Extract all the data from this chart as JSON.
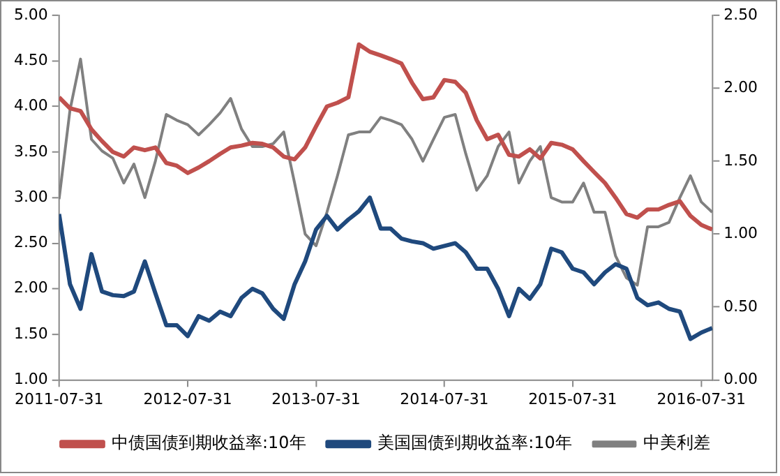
{
  "chart_data": {
    "type": "line",
    "x": [
      "2011-07-31",
      "2011-08-31",
      "2011-09-30",
      "2011-10-31",
      "2011-11-30",
      "2011-12-31",
      "2012-01-31",
      "2012-02-29",
      "2012-03-31",
      "2012-04-30",
      "2012-05-31",
      "2012-06-30",
      "2012-07-31",
      "2012-08-31",
      "2012-09-30",
      "2012-10-31",
      "2012-11-30",
      "2012-12-31",
      "2013-01-31",
      "2013-02-28",
      "2013-03-31",
      "2013-04-30",
      "2013-05-31",
      "2013-06-30",
      "2013-07-31",
      "2013-08-31",
      "2013-09-30",
      "2013-10-31",
      "2013-11-30",
      "2013-12-31",
      "2014-01-31",
      "2014-02-28",
      "2014-03-31",
      "2014-04-30",
      "2014-05-31",
      "2014-06-30",
      "2014-07-31",
      "2014-08-31",
      "2014-09-30",
      "2014-10-31",
      "2014-11-30",
      "2014-12-31",
      "2015-01-31",
      "2015-02-28",
      "2015-03-31",
      "2015-04-30",
      "2015-05-31",
      "2015-06-30",
      "2015-07-31",
      "2015-08-31",
      "2015-09-30",
      "2015-10-31",
      "2015-11-30",
      "2015-12-31",
      "2016-01-31",
      "2016-02-29",
      "2016-03-31",
      "2016-04-30",
      "2016-05-31",
      "2016-06-30",
      "2016-07-31",
      "2016-08-31"
    ],
    "series": [
      {
        "name": "中债国债到期收益率:10年",
        "color": "#c0504d",
        "values": [
          4.1,
          3.98,
          3.95,
          3.75,
          3.62,
          3.5,
          3.45,
          3.55,
          3.52,
          3.55,
          3.38,
          3.35,
          3.27,
          3.33,
          3.4,
          3.48,
          3.55,
          3.57,
          3.6,
          3.59,
          3.55,
          3.45,
          3.42,
          3.55,
          3.78,
          4.0,
          4.04,
          4.1,
          4.68,
          4.6,
          4.56,
          4.52,
          4.47,
          4.26,
          4.08,
          4.1,
          4.29,
          4.27,
          4.15,
          3.85,
          3.64,
          3.69,
          3.47,
          3.45,
          3.53,
          3.43,
          3.6,
          3.58,
          3.53,
          3.4,
          3.28,
          3.16,
          3.0,
          2.82,
          2.78,
          2.87,
          2.87,
          2.92,
          2.96,
          2.8,
          2.7,
          2.65
        ]
      },
      {
        "name": "美国国债到期收益率:10年",
        "color": "#1f497d",
        "values": [
          2.82,
          2.05,
          1.78,
          2.38,
          1.97,
          1.93,
          1.92,
          1.97,
          2.3,
          1.95,
          1.6,
          1.6,
          1.48,
          1.7,
          1.65,
          1.75,
          1.7,
          1.9,
          2.0,
          1.95,
          1.78,
          1.67,
          2.05,
          2.3,
          2.65,
          2.8,
          2.65,
          2.76,
          2.85,
          3.0,
          2.66,
          2.66,
          2.55,
          2.52,
          2.5,
          2.44,
          2.47,
          2.5,
          2.4,
          2.22,
          2.22,
          2.0,
          1.7,
          2.0,
          1.89,
          2.05,
          2.44,
          2.4,
          2.22,
          2.18,
          2.05,
          2.18,
          2.27,
          2.22,
          1.9,
          1.82,
          1.85,
          1.78,
          1.75,
          1.45,
          1.52,
          1.57
        ]
      },
      {
        "name": "中美利差",
        "color": "#808080",
        "axis": "y2",
        "values": [
          1.24,
          1.85,
          2.2,
          1.65,
          1.57,
          1.52,
          1.35,
          1.48,
          1.25,
          1.5,
          1.82,
          1.78,
          1.75,
          1.68,
          1.75,
          1.83,
          1.93,
          1.72,
          1.6,
          1.6,
          1.62,
          1.7,
          1.35,
          1.0,
          0.92,
          1.15,
          1.4,
          1.68,
          1.7,
          1.7,
          1.8,
          1.78,
          1.75,
          1.65,
          1.5,
          1.65,
          1.8,
          1.82,
          1.55,
          1.3,
          1.4,
          1.6,
          1.7,
          1.35,
          1.5,
          1.6,
          1.25,
          1.22,
          1.22,
          1.35,
          1.15,
          1.15,
          0.85,
          0.7,
          0.65,
          1.05,
          1.05,
          1.08,
          1.25,
          1.4,
          1.22,
          1.15
        ]
      }
    ],
    "xlim": [
      "2011-07-31",
      "2016-09-01"
    ],
    "xticks": [
      "2011-07-31",
      "2012-07-31",
      "2013-07-31",
      "2014-07-31",
      "2015-07-31",
      "2016-07-31"
    ],
    "ylim": [
      1,
      5
    ],
    "yticks": [
      {
        "value": 1,
        "label": "1.00"
      },
      {
        "value": 1.5,
        "label": "1.50"
      },
      {
        "value": 2,
        "label": "2.00"
      },
      {
        "value": 2.5,
        "label": "2.50"
      },
      {
        "value": 3,
        "label": "3.00"
      },
      {
        "value": 3.5,
        "label": "3.50"
      },
      {
        "value": 4,
        "label": "4.00"
      },
      {
        "value": 4.5,
        "label": "4.50"
      },
      {
        "value": 5,
        "label": "5.00"
      }
    ],
    "y2lim": [
      0,
      2.5
    ],
    "y2ticks": [
      {
        "value": 0,
        "label": "0.00"
      },
      {
        "value": 0.5,
        "label": "0.50"
      },
      {
        "value": 1,
        "label": "1.00"
      },
      {
        "value": 1.5,
        "label": "1.50"
      },
      {
        "value": 2,
        "label": "2.00"
      },
      {
        "value": 2.5,
        "label": "2.50"
      }
    ],
    "grid": false,
    "legend": "bottom"
  }
}
